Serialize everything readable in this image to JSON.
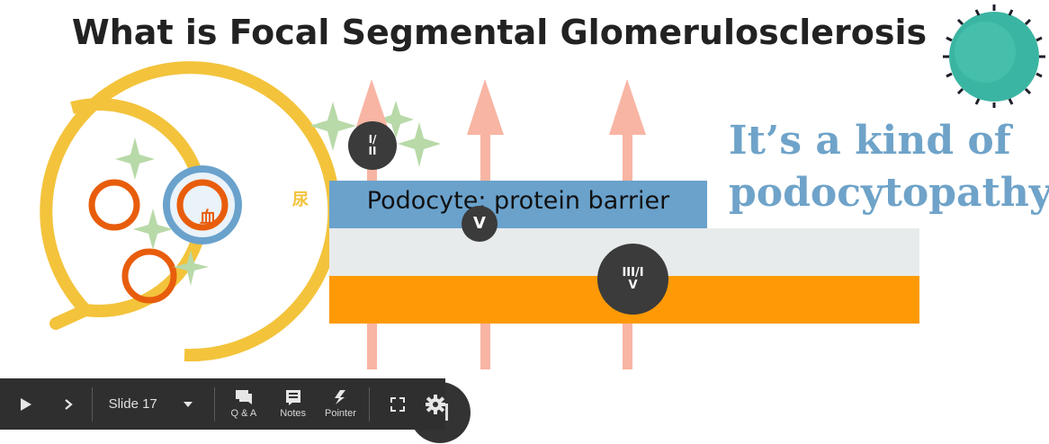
{
  "slide": {
    "title": "What is Focal Segmental Glomerulosclerosis",
    "tagline_line1": "It’s a kind of",
    "tagline_line2": "podocytopathy!",
    "barrier_label": "Podocyte: protein barrier",
    "glomerulus_label_urine": "尿",
    "glomerulus_label_blood": "血",
    "badges": {
      "b1_top": "I/",
      "b1_bottom": "II",
      "b2": "V",
      "b3_top": "III/I",
      "b3_bottom": "V"
    },
    "colors": {
      "accent_blue": "#6fa3c9",
      "podocyte_blue": "#6aa2cc",
      "gbm_gray": "#e8ebec",
      "endothelium_orange": "#ff9a06",
      "arrow_salmon": "#f8b5a3",
      "capsule_yellow": "#f3c33b",
      "capillary_orange": "#e85d0c",
      "sparkle_green": "#b8d9a8"
    }
  },
  "toolbar": {
    "play_icon": "play-icon",
    "next_icon": "chevron-right-icon",
    "slide_selector": "Slide 17",
    "qa_label": "Q & A",
    "notes_label": "Notes",
    "pointer_label": "Pointer",
    "fullscreen_icon": "fullscreen-icon",
    "settings_icon": "gear-icon"
  }
}
